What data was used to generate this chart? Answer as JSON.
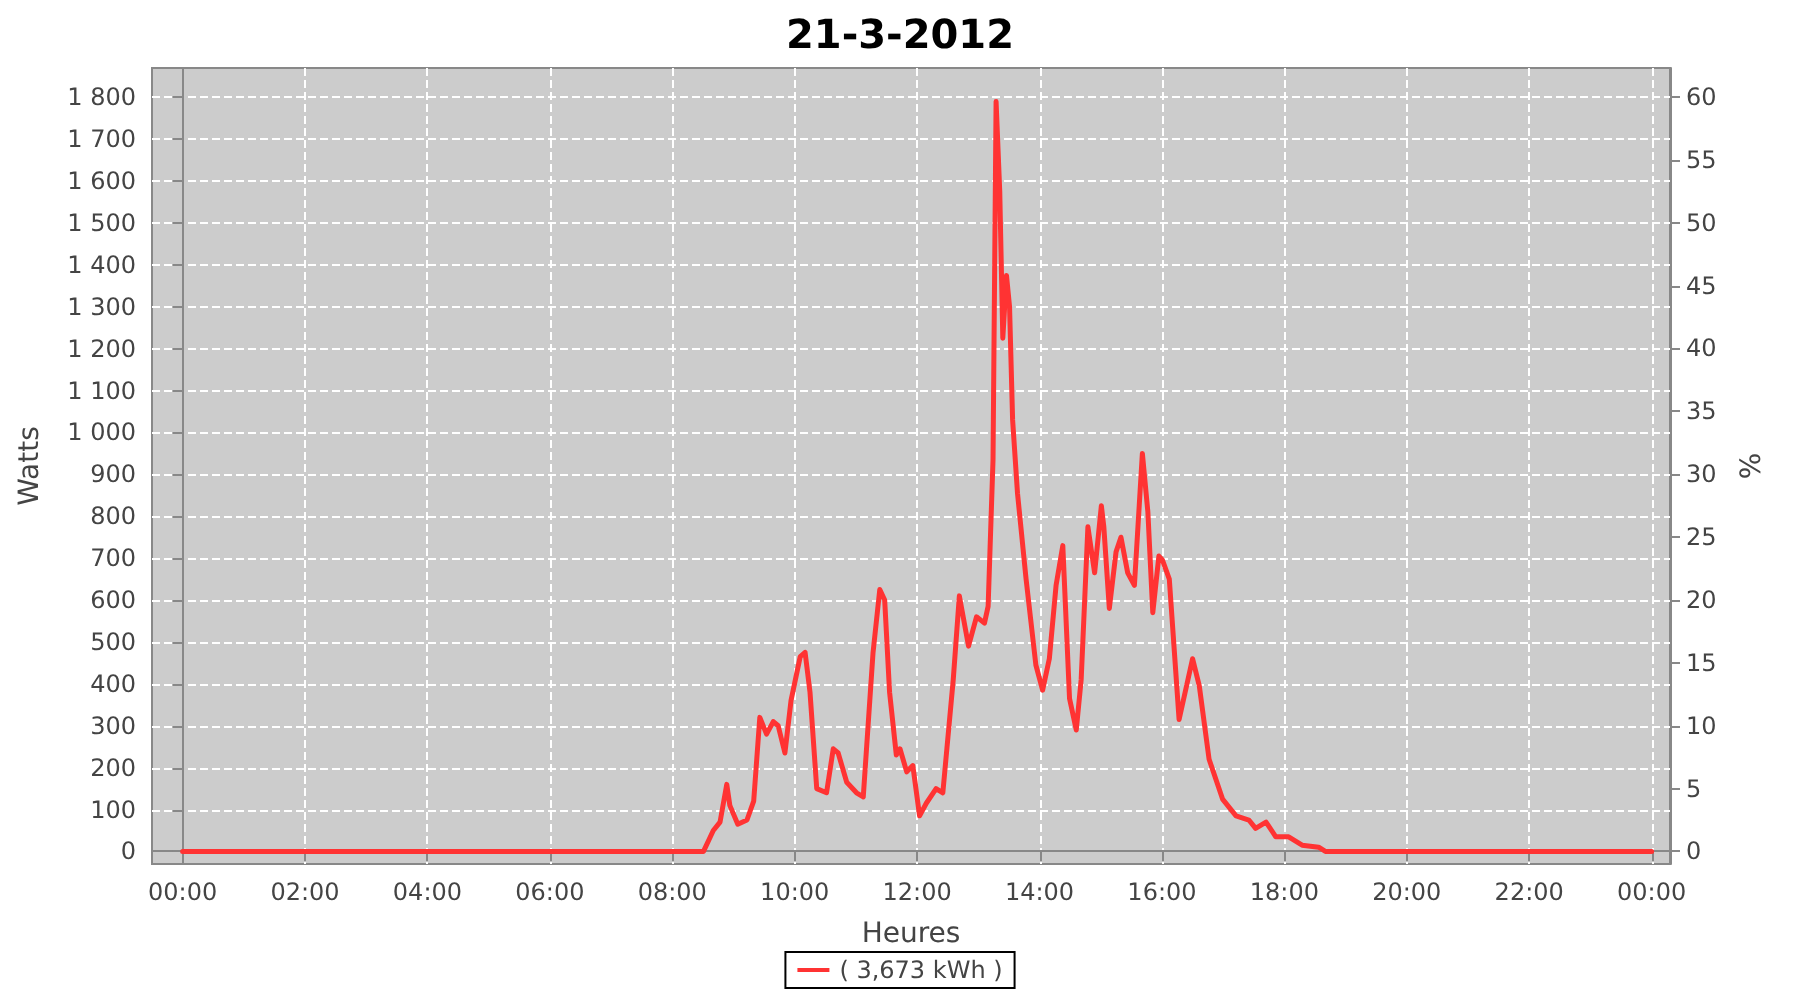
{
  "chart_data": {
    "type": "line",
    "title": "21-3-2012",
    "xlabel": "Heures",
    "ylabel": "Watts",
    "y2label": "%",
    "xlim": [
      -0.5,
      24.3
    ],
    "xticks": [
      {
        "value": 0,
        "label": "00:00"
      },
      {
        "value": 2,
        "label": "02:00"
      },
      {
        "value": 4,
        "label": "04:00"
      },
      {
        "value": 6,
        "label": "06:00"
      },
      {
        "value": 8,
        "label": "08:00"
      },
      {
        "value": 10,
        "label": "10:00"
      },
      {
        "value": 12,
        "label": "12:00"
      },
      {
        "value": 14,
        "label": "14:00"
      },
      {
        "value": 16,
        "label": "16:00"
      },
      {
        "value": 18,
        "label": "18:00"
      },
      {
        "value": 20,
        "label": "20:00"
      },
      {
        "value": 22,
        "label": "22:00"
      },
      {
        "value": 24,
        "label": "00:00"
      }
    ],
    "ylim": [
      -30,
      1870
    ],
    "yticks": [
      0,
      100,
      200,
      300,
      400,
      500,
      600,
      700,
      800,
      900,
      {
        "value": 1000,
        "label": "1 000"
      },
      {
        "value": 1100,
        "label": "1 100"
      },
      {
        "value": 1200,
        "label": "1 200"
      },
      {
        "value": 1300,
        "label": "1 300"
      },
      {
        "value": 1400,
        "label": "1 400"
      },
      {
        "value": 1500,
        "label": "1 500"
      },
      {
        "value": 1600,
        "label": "1 600"
      },
      {
        "value": 1700,
        "label": "1 700"
      },
      {
        "value": 1800,
        "label": "1 800"
      }
    ],
    "y2lim": [
      -1,
      62.3
    ],
    "y2ticks": [
      0,
      5,
      10,
      15,
      20,
      25,
      30,
      35,
      40,
      45,
      50,
      55,
      60
    ],
    "grid": true,
    "legend": "bottom",
    "marker": "none",
    "line_style": "solid",
    "series": [
      {
        "name": "( 3,673 kWh )",
        "color": "#ff3333",
        "x": [
          0,
          8.51,
          8.67,
          8.78,
          8.89,
          8.94,
          9.07,
          9.22,
          9.33,
          9.43,
          9.54,
          9.65,
          9.73,
          9.84,
          9.94,
          10.09,
          10.17,
          10.25,
          10.36,
          10.52,
          10.63,
          10.71,
          10.85,
          11.01,
          11.12,
          11.28,
          11.39,
          11.47,
          11.55,
          11.66,
          11.72,
          11.83,
          11.93,
          12.04,
          12.15,
          12.31,
          12.42,
          12.59,
          12.69,
          12.84,
          12.97,
          13.1,
          13.16,
          13.24,
          13.29,
          13.35,
          13.4,
          13.46,
          13.51,
          13.56,
          13.64,
          13.78,
          13.94,
          14.05,
          14.16,
          14.27,
          14.38,
          14.49,
          14.6,
          14.68,
          14.79,
          14.9,
          15.01,
          15.05,
          15.14,
          15.25,
          15.33,
          15.44,
          15.55,
          15.68,
          15.77,
          15.85,
          15.95,
          16.01,
          16.12,
          16.28,
          16.5,
          16.61,
          16.77,
          16.99,
          17.21,
          17.42,
          17.53,
          17.7,
          17.86,
          18.07,
          18.29,
          18.56,
          18.67,
          24
        ],
        "values": [
          0,
          0,
          50,
          70,
          160,
          110,
          65,
          75,
          120,
          320,
          280,
          310,
          300,
          235,
          360,
          465,
          475,
          380,
          150,
          140,
          245,
          235,
          165,
          140,
          130,
          475,
          625,
          600,
          380,
          230,
          245,
          190,
          205,
          85,
          115,
          150,
          140,
          410,
          610,
          490,
          560,
          545,
          585,
          935,
          1790,
          1575,
          1225,
          1375,
          1300,
          1030,
          855,
          650,
          445,
          385,
          460,
          635,
          730,
          365,
          290,
          410,
          775,
          665,
          825,
          775,
          580,
          715,
          750,
          665,
          635,
          950,
          810,
          570,
          705,
          695,
          650,
          315,
          460,
          395,
          220,
          125,
          85,
          75,
          55,
          70,
          35,
          35,
          15,
          10,
          0,
          0
        ]
      }
    ]
  }
}
